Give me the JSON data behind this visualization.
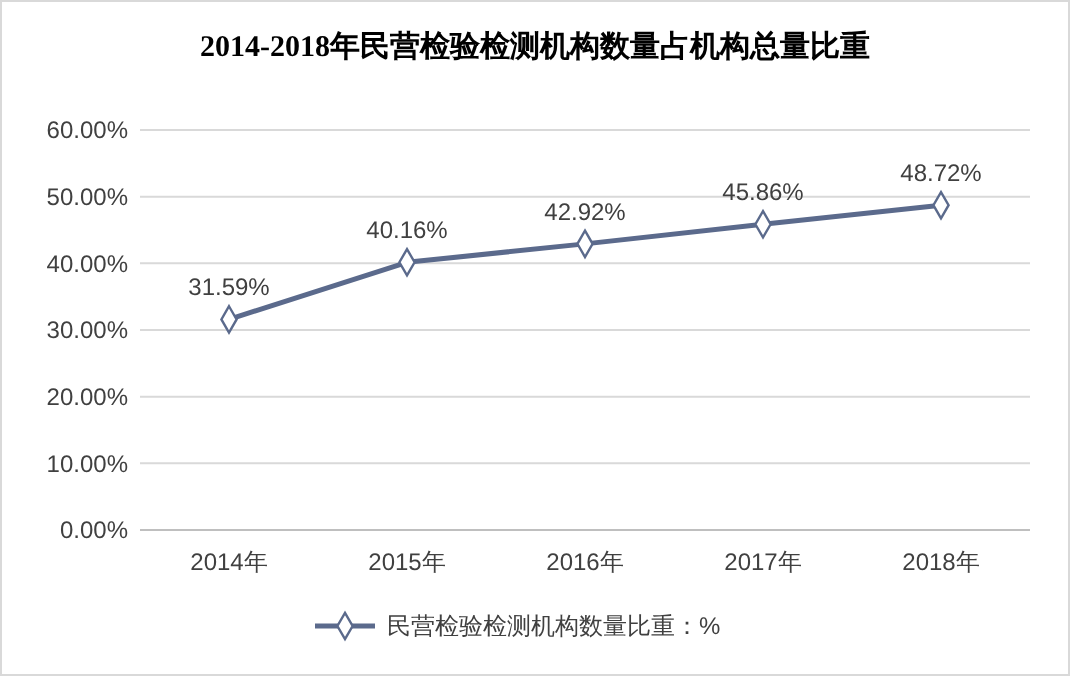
{
  "chart_data": {
    "type": "line",
    "title": "2014-2018年民营检验检测机构数量占机构总量比重",
    "categories": [
      "2014年",
      "2015年",
      "2016年",
      "2017年",
      "2018年"
    ],
    "series": [
      {
        "name": "民营检验检测机构数量比重：%",
        "color": "#5b6a8c",
        "values": [
          31.59,
          40.16,
          42.92,
          45.86,
          48.72
        ],
        "value_labels": [
          "31.59%",
          "40.16%",
          "42.92%",
          "45.86%",
          "48.72%"
        ]
      }
    ],
    "ylim": [
      0,
      60
    ],
    "yticks": [
      {
        "value": 0,
        "label": "0.00%"
      },
      {
        "value": 10,
        "label": "10.00%"
      },
      {
        "value": 20,
        "label": "20.00%"
      },
      {
        "value": 30,
        "label": "30.00%"
      },
      {
        "value": 40,
        "label": "40.00%"
      },
      {
        "value": 50,
        "label": "50.00%"
      },
      {
        "value": 60,
        "label": "60.00%"
      }
    ],
    "grid": "y",
    "legend": "bottom",
    "marker": "diamond",
    "line_style": "solid"
  }
}
